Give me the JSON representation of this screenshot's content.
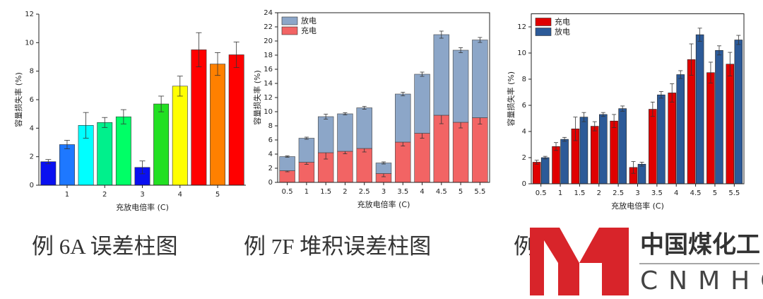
{
  "chart_data": [
    {
      "type": "bar",
      "xlabel": "充放电倍率 (C)",
      "ylabel": "容量损失率 (%)",
      "x": [
        0.5,
        1,
        1.5,
        2,
        2.5,
        3,
        3.5,
        4,
        4.5,
        5,
        5.5
      ],
      "values": [
        1.65,
        2.85,
        4.2,
        4.4,
        4.8,
        1.25,
        5.7,
        6.95,
        9.5,
        8.5,
        9.15
      ],
      "errors": [
        0.15,
        0.3,
        0.9,
        0.35,
        0.5,
        0.45,
        0.55,
        0.7,
        1.2,
        0.8,
        0.9
      ],
      "colors": [
        "#0a10f0",
        "#1e78ff",
        "#00ffff",
        "#00f08c",
        "#00ff66",
        "#0a10f0",
        "#22e022",
        "#ffff00",
        "#ff0000",
        "#ff8000",
        "#ff0000"
      ],
      "xlim": [
        0.25,
        5.75
      ],
      "xticks": [
        1,
        2,
        3,
        4,
        5
      ],
      "ylim": [
        0,
        12
      ],
      "yticks": [
        0,
        2,
        4,
        6,
        8,
        10,
        12
      ]
    },
    {
      "type": "stacked",
      "xlabel": "充放电倍率 (C)",
      "ylabel": "容量损失率 (%)",
      "x": [
        0.5,
        1,
        1.5,
        2,
        2.5,
        3,
        3.5,
        4,
        4.5,
        5,
        5.5
      ],
      "series": [
        {
          "name": "充电",
          "color": "#f26464",
          "values": [
            1.65,
            2.85,
            4.2,
            4.4,
            4.8,
            1.25,
            5.7,
            6.95,
            9.5,
            8.5,
            9.15
          ],
          "errors": [
            0.15,
            0.3,
            0.9,
            0.35,
            0.5,
            0.45,
            0.55,
            0.7,
            1.2,
            0.8,
            0.9
          ]
        },
        {
          "name": "放电",
          "color": "#8ca6c8",
          "values": [
            2.0,
            3.4,
            5.1,
            5.3,
            5.75,
            1.5,
            6.8,
            8.35,
            11.4,
            10.2,
            11.0
          ],
          "errors": [
            0.1,
            0.15,
            0.35,
            0.15,
            0.2,
            0.15,
            0.25,
            0.3,
            0.5,
            0.35,
            0.35
          ]
        }
      ],
      "legend": "upper-left",
      "xlim": [
        0.25,
        5.75
      ],
      "xticks": [
        0.5,
        1,
        1.5,
        2,
        2.5,
        3,
        3.5,
        4,
        4.5,
        5,
        5.5
      ],
      "ylim": [
        0,
        24
      ],
      "yticks": [
        0,
        2,
        4,
        6,
        8,
        10,
        12,
        14,
        16,
        18,
        20,
        22,
        24
      ]
    },
    {
      "type": "grouped",
      "xlabel": "充放电倍率 (C)",
      "ylabel": "容量损失率 (%)",
      "x": [
        0.5,
        1,
        1.5,
        2,
        2.5,
        3,
        3.5,
        4,
        4.5,
        5,
        5.5
      ],
      "series": [
        {
          "name": "充电",
          "color": "#e00000",
          "values": [
            1.65,
            2.85,
            4.2,
            4.4,
            4.8,
            1.25,
            5.7,
            6.95,
            9.5,
            8.5,
            9.15
          ],
          "errors": [
            0.15,
            0.3,
            0.9,
            0.35,
            0.5,
            0.45,
            0.55,
            0.7,
            1.2,
            0.8,
            0.9
          ]
        },
        {
          "name": "放电",
          "color": "#2c5a98",
          "values": [
            2.0,
            3.4,
            5.1,
            5.3,
            5.75,
            1.5,
            6.8,
            8.35,
            11.4,
            10.2,
            11.0
          ],
          "errors": [
            0.1,
            0.15,
            0.35,
            0.15,
            0.2,
            0.15,
            0.25,
            0.3,
            0.5,
            0.35,
            0.35
          ]
        }
      ],
      "legend": "upper-left",
      "xlim": [
        0.25,
        5.75
      ],
      "xticks": [
        0.5,
        1,
        1.5,
        2,
        2.5,
        3,
        3.5,
        4,
        4.5,
        5,
        5.5
      ],
      "ylim": [
        0,
        13
      ],
      "yticks": [
        0,
        2,
        4,
        6,
        8,
        10,
        12
      ]
    }
  ],
  "captions": [
    "例 6A 误差柱图",
    "例 7F 堆积误差柱图",
    "例"
  ],
  "logo": {
    "cn": "中国煤化工",
    "en": "CNMHG"
  }
}
